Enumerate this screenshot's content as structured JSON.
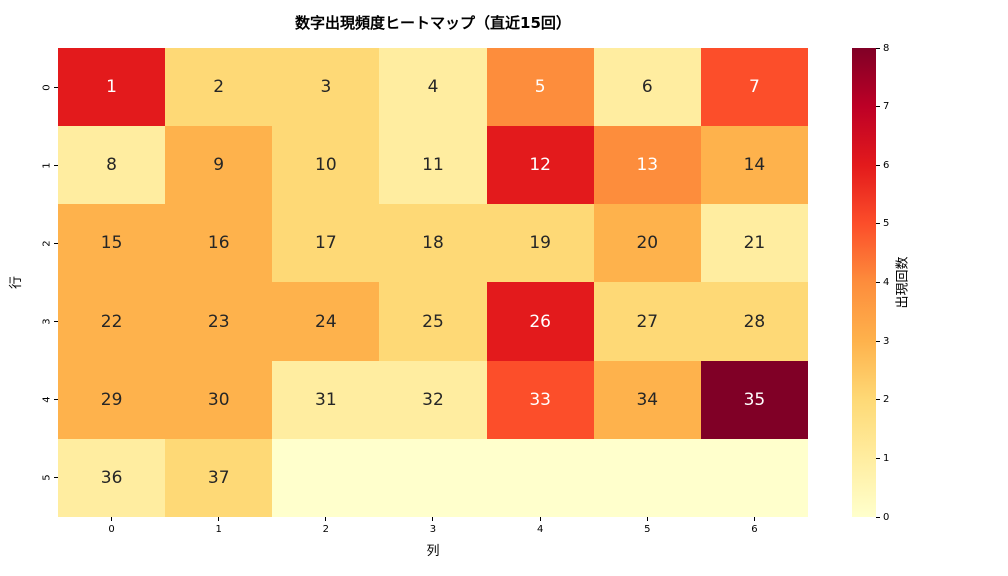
{
  "title": "数字出現頻度ヒートマップ（直近15回）",
  "chart_data": {
    "type": "heatmap",
    "title": "数字出現頻度ヒートマップ（直近15回）",
    "xlabel": "列",
    "ylabel": "行",
    "colorbar_label": "出現回数",
    "x_ticks": [
      "0",
      "1",
      "2",
      "3",
      "4",
      "5",
      "6"
    ],
    "y_ticks": [
      "0",
      "1",
      "2",
      "3",
      "4",
      "5"
    ],
    "colorbar_ticks": [
      0,
      1,
      2,
      3,
      4,
      5,
      6,
      7,
      8
    ],
    "vmin": 0,
    "vmax": 8,
    "colormap": "YlOrRd",
    "grid": false,
    "legend_position": "right-colorbar",
    "cell_labels": [
      [
        "1",
        "2",
        "3",
        "4",
        "5",
        "6",
        "7"
      ],
      [
        "8",
        "9",
        "10",
        "11",
        "12",
        "13",
        "14"
      ],
      [
        "15",
        "16",
        "17",
        "18",
        "19",
        "20",
        "21"
      ],
      [
        "22",
        "23",
        "24",
        "25",
        "26",
        "27",
        "28"
      ],
      [
        "29",
        "30",
        "31",
        "32",
        "33",
        "34",
        "35"
      ],
      [
        "36",
        "37",
        null,
        null,
        null,
        null,
        null
      ]
    ],
    "values": [
      [
        6,
        2,
        2,
        1,
        4,
        1,
        5
      ],
      [
        1,
        3,
        2,
        1,
        6,
        4,
        3
      ],
      [
        3,
        3,
        2,
        2,
        2,
        3,
        1
      ],
      [
        3,
        3,
        3,
        2,
        6,
        2,
        2
      ],
      [
        3,
        3,
        1,
        1,
        5,
        3,
        8
      ],
      [
        1,
        2,
        0,
        0,
        0,
        0,
        0
      ]
    ]
  },
  "colors": {
    "scale": [
      "#ffffcc",
      "#ffeda0",
      "#fed976",
      "#feb24c",
      "#fd8d3c",
      "#fc4e2a",
      "#e31a1c",
      "#bd0026",
      "#800026"
    ],
    "annotation_dark": "#262626",
    "annotation_light": "#ffffff",
    "background": "#ffffff",
    "axis_text": "#000000"
  }
}
